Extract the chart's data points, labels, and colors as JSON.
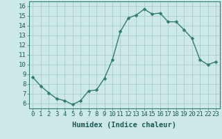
{
  "x": [
    0,
    1,
    2,
    3,
    4,
    5,
    6,
    7,
    8,
    9,
    10,
    11,
    12,
    13,
    14,
    15,
    16,
    17,
    18,
    19,
    20,
    21,
    22,
    23
  ],
  "y": [
    8.7,
    7.8,
    7.1,
    6.5,
    6.3,
    5.9,
    6.3,
    7.3,
    7.4,
    8.6,
    10.5,
    13.4,
    14.8,
    15.1,
    15.7,
    15.2,
    15.3,
    14.4,
    14.4,
    13.6,
    12.7,
    10.5,
    10.0,
    10.3
  ],
  "line_color": "#2e7d6e",
  "marker": "D",
  "marker_size": 2.5,
  "linewidth": 1.0,
  "bg_color": "#cce8e8",
  "grid_color": "#aacccc",
  "xlabel": "Humidex (Indice chaleur)",
  "ylabel_ticks": [
    6,
    7,
    8,
    9,
    10,
    11,
    12,
    13,
    14,
    15,
    16
  ],
  "ylim": [
    5.5,
    16.5
  ],
  "xlim": [
    -0.5,
    23.5
  ],
  "xlabel_fontsize": 7.5,
  "tick_fontsize": 6.5,
  "tick_color": "#1a5a52",
  "label_color": "#1a5a52",
  "spine_color": "#2e7d6e"
}
